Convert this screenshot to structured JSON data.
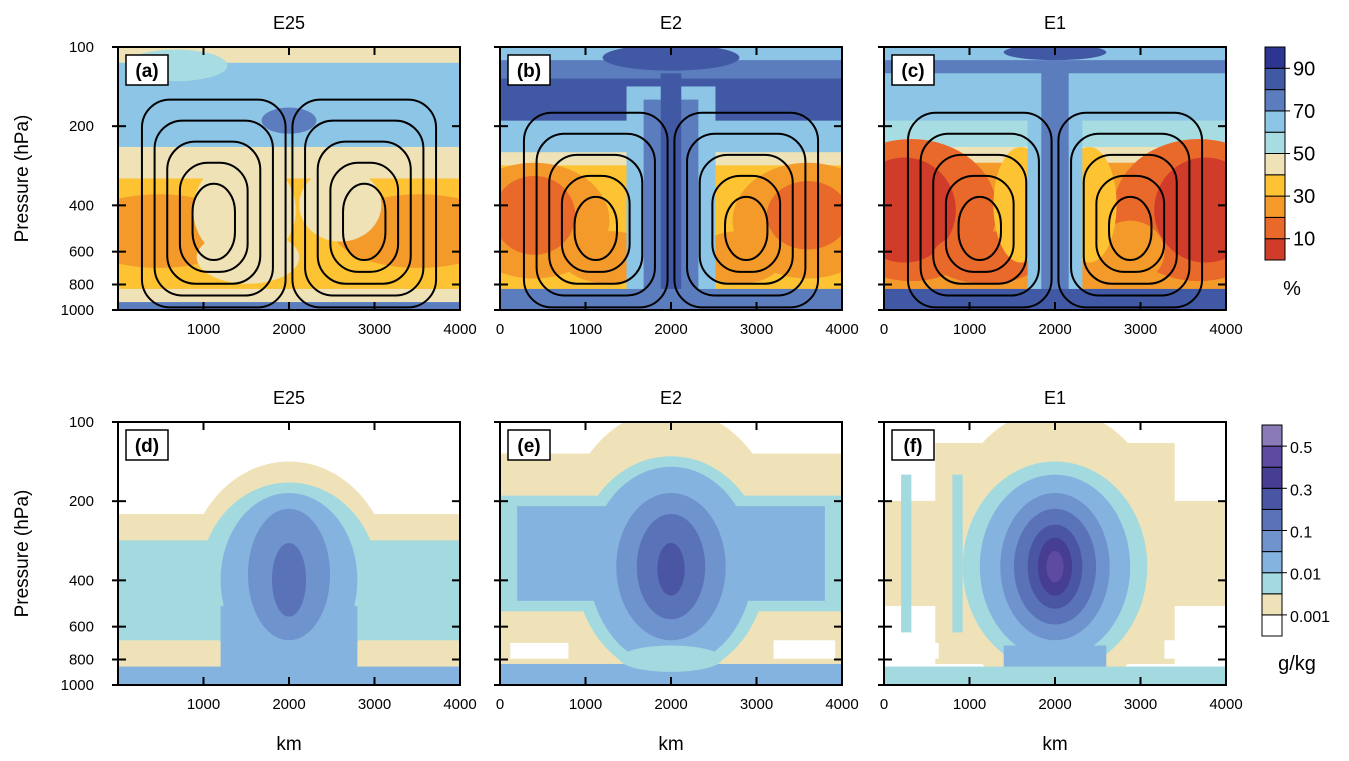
{
  "chart_data": [
    {
      "type": "contour",
      "title": "E25",
      "panel_label": "(a)",
      "xlim": [
        0,
        4000
      ],
      "xticks": [
        1000,
        2000,
        3000,
        4000
      ],
      "ylim": [
        1000,
        100
      ],
      "yticks": [
        100,
        200,
        400,
        600,
        800,
        1000
      ],
      "ylog": true,
      "ytick_labels": true,
      "ylabel": "Pressure (hPa)",
      "colorbar": 6
    },
    {
      "type": "contour",
      "title": "E2",
      "panel_label": "(b)",
      "xlim": [
        0,
        4000
      ],
      "xticks": [
        0,
        1000,
        2000,
        3000,
        4000
      ],
      "ylim": [
        1000,
        100
      ],
      "yticks": [
        100,
        200,
        400,
        600,
        800,
        1000
      ],
      "ylog": true,
      "ytick_labels": false,
      "colorbar": 6
    },
    {
      "type": "contour",
      "title": "E1",
      "panel_label": "(c)",
      "xlim": [
        0,
        4000
      ],
      "xticks": [
        0,
        1000,
        2000,
        3000,
        4000
      ],
      "ylim": [
        1000,
        100
      ],
      "yticks": [
        100,
        200,
        400,
        600,
        800,
        1000
      ],
      "ylog": true,
      "ytick_labels": false,
      "colorbar": 6
    },
    {
      "type": "contour",
      "title": "E25",
      "panel_label": "(d)",
      "xlim": [
        0,
        4000
      ],
      "xticks": [
        1000,
        2000,
        3000,
        4000
      ],
      "ylim": [
        1000,
        100
      ],
      "yticks": [
        100,
        200,
        400,
        600,
        800,
        1000
      ],
      "ylog": true,
      "ytick_labels": true,
      "ylabel": "Pressure (hPa)",
      "xlabel": "km",
      "colorbar": 7
    },
    {
      "type": "contour",
      "title": "E2",
      "panel_label": "(e)",
      "xlim": [
        0,
        4000
      ],
      "xticks": [
        0,
        1000,
        2000,
        3000,
        4000
      ],
      "ylim": [
        1000,
        100
      ],
      "yticks": [
        100,
        200,
        400,
        600,
        800,
        1000
      ],
      "ylog": true,
      "ytick_labels": false,
      "xlabel": "km",
      "colorbar": 7
    },
    {
      "type": "contour",
      "title": "E1",
      "panel_label": "(f)",
      "xlim": [
        0,
        4000
      ],
      "xticks": [
        0,
        1000,
        2000,
        3000,
        4000
      ],
      "ylim": [
        1000,
        100
      ],
      "yticks": [
        100,
        200,
        400,
        600,
        800,
        1000
      ],
      "ylog": true,
      "ytick_labels": false,
      "xlabel": "km",
      "colorbar": 7
    },
    {
      "type": "colorbar",
      "ticks": [
        10,
        30,
        50,
        70,
        90
      ],
      "label": "%",
      "colors": [
        "#d13b2a",
        "#e8692a",
        "#f49a2b",
        "#fdc332",
        "#efe2b6",
        "#a7dde2",
        "#8cc5e6",
        "#5b7dbd",
        "#4159a5",
        "#2c3590"
      ]
    },
    {
      "type": "colorbar",
      "ticks": [
        0.001,
        0.01,
        0.1,
        0.3,
        0.5
      ],
      "label": "g/kg",
      "colors": [
        "#ffffff",
        "#efe2b8",
        "#a3dadf",
        "#85b3e0",
        "#6f93cc",
        "#5a73b8",
        "#4a55a4",
        "#463e92",
        "#5e4aa0",
        "#8a7ab8"
      ]
    }
  ]
}
